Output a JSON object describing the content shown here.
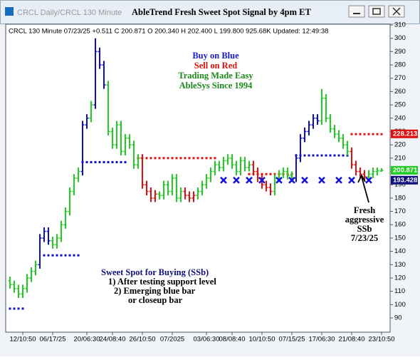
{
  "window": {
    "subtitle": "CRCL  Daily/CRCL 130 Minute",
    "title": "AbleTrend Fresh Sweet Spot Signal by 4pm ET"
  },
  "chart_data": {
    "type": "ohlc",
    "header": "CRCL 130 Minute 07/23/25 +0.511 C 200.871 O 200.340 H 202.400 L 199.800 925.68K Updated: 12:49:38",
    "open": [
      118,
      115,
      112,
      108,
      112,
      120,
      125,
      130,
      150,
      155,
      148,
      145,
      150,
      160,
      170,
      185,
      195,
      200,
      235,
      240,
      250,
      290,
      280,
      265,
      230,
      220,
      235,
      215,
      225,
      220,
      205,
      210,
      190,
      185,
      180,
      183,
      182,
      190,
      185,
      195,
      180,
      185,
      182,
      180,
      182,
      185,
      190,
      195,
      200,
      205,
      203,
      208,
      210,
      205,
      200,
      208,
      203,
      205,
      200,
      195,
      190,
      188,
      185,
      195,
      198,
      200,
      197,
      195,
      210,
      225,
      230,
      235,
      240,
      238,
      255,
      240,
      232,
      228,
      225,
      220,
      215,
      205,
      200,
      198,
      196,
      198,
      200,
      200.34
    ],
    "high": [
      121,
      118,
      115,
      115,
      123,
      128,
      133,
      153,
      158,
      158,
      151,
      153,
      163,
      173,
      188,
      198,
      203,
      238,
      243,
      253,
      300,
      293,
      283,
      268,
      233,
      238,
      238,
      228,
      228,
      223,
      213,
      213,
      193,
      188,
      186,
      185,
      193,
      193,
      198,
      198,
      188,
      188,
      185,
      185,
      188,
      193,
      198,
      203,
      208,
      208,
      211,
      213,
      213,
      208,
      211,
      211,
      208,
      208,
      203,
      198,
      193,
      191,
      198,
      201,
      203,
      203,
      200,
      213,
      228,
      233,
      238,
      243,
      243,
      262,
      258,
      243,
      235,
      231,
      228,
      223,
      218,
      208,
      203,
      201,
      201,
      203,
      203,
      202.4
    ],
    "low": [
      112,
      109,
      105,
      105,
      109,
      117,
      122,
      127,
      147,
      145,
      142,
      142,
      147,
      157,
      167,
      182,
      192,
      197,
      232,
      237,
      247,
      277,
      262,
      227,
      217,
      217,
      212,
      212,
      217,
      202,
      202,
      187,
      182,
      177,
      177,
      179,
      179,
      182,
      182,
      177,
      177,
      179,
      177,
      177,
      179,
      182,
      187,
      192,
      197,
      200,
      200,
      205,
      202,
      197,
      197,
      200,
      200,
      197,
      192,
      187,
      185,
      182,
      182,
      192,
      195,
      194,
      192,
      192,
      207,
      222,
      227,
      232,
      235,
      235,
      237,
      229,
      225,
      222,
      217,
      212,
      202,
      197,
      195,
      193,
      193,
      195,
      197,
      199.8
    ],
    "close": [
      115,
      112,
      108,
      112,
      120,
      125,
      130,
      150,
      155,
      148,
      145,
      150,
      160,
      170,
      185,
      195,
      200,
      235,
      240,
      250,
      290,
      280,
      265,
      230,
      220,
      235,
      215,
      225,
      220,
      205,
      210,
      190,
      185,
      180,
      183,
      182,
      190,
      185,
      195,
      180,
      185,
      182,
      180,
      182,
      185,
      190,
      195,
      200,
      205,
      203,
      208,
      210,
      205,
      200,
      208,
      203,
      205,
      200,
      195,
      190,
      188,
      185,
      195,
      198,
      200,
      197,
      195,
      210,
      225,
      230,
      235,
      240,
      238,
      255,
      240,
      232,
      228,
      225,
      220,
      215,
      205,
      200,
      198,
      196,
      198,
      200,
      200.5,
      200.871
    ],
    "colors": [
      "#22cc22",
      "#22cc22",
      "#22cc22",
      "#22cc22",
      "#22cc22",
      "#22cc22",
      "#22cc22",
      "#1010c0",
      "#1010c0",
      "#1010c0",
      "#22cc22",
      "#22cc22",
      "#22cc22",
      "#22cc22",
      "#22cc22",
      "#22cc22",
      "#22cc22",
      "#1010c0",
      "#1010c0",
      "#22cc22",
      "#1010c0",
      "#1010c0",
      "#1010c0",
      "#22cc22",
      "#22cc22",
      "#22cc22",
      "#22cc22",
      "#22cc22",
      "#22cc22",
      "#22cc22",
      "#22cc22",
      "#e01010",
      "#e01010",
      "#e01010",
      "#e01010",
      "#22cc22",
      "#22cc22",
      "#22cc22",
      "#22cc22",
      "#22cc22",
      "#22cc22",
      "#e01010",
      "#e01010",
      "#e01010",
      "#22cc22",
      "#22cc22",
      "#22cc22",
      "#22cc22",
      "#22cc22",
      "#22cc22",
      "#22cc22",
      "#22cc22",
      "#22cc22",
      "#22cc22",
      "#22cc22",
      "#22cc22",
      "#22cc22",
      "#e01010",
      "#e01010",
      "#e01010",
      "#e01010",
      "#e01010",
      "#22cc22",
      "#22cc22",
      "#22cc22",
      "#22cc22",
      "#22cc22",
      "#1010c0",
      "#1010c0",
      "#1010c0",
      "#1010c0",
      "#1010c0",
      "#1010c0",
      "#22cc22",
      "#22cc22",
      "#22cc22",
      "#22cc22",
      "#22cc22",
      "#22cc22",
      "#22cc22",
      "#e01010",
      "#e01010",
      "#e01010",
      "#e01010",
      "#22cc22",
      "#22cc22",
      "#22cc22",
      "#22cc22"
    ],
    "stops": [
      {
        "start": 0,
        "end": 3,
        "value": 97,
        "color": "#1010c0"
      },
      {
        "start": 8,
        "end": 16,
        "value": 137,
        "color": "#1010c0"
      },
      {
        "start": 17,
        "end": 27,
        "value": 207,
        "color": "#1010c0"
      },
      {
        "start": 30,
        "end": 48,
        "value": 210,
        "color": "#e01010"
      },
      {
        "start": 56,
        "end": 66,
        "value": 198,
        "color": "#e01010"
      },
      {
        "start": 67,
        "end": 79,
        "value": 212,
        "color": "#1010c0"
      },
      {
        "start": 80,
        "end": 87,
        "value": 228,
        "color": "#e01010"
      }
    ],
    "x_marks": {
      "index": [
        50,
        53,
        56,
        59,
        63,
        66,
        69,
        73,
        77,
        80,
        84
      ],
      "value": 193.428,
      "color": "#1010e0"
    },
    "price_labels": [
      {
        "value": 228.213,
        "color": "#e01010"
      },
      {
        "value": 200.871,
        "color": "#22cc22"
      },
      {
        "value": 193.428,
        "color": "#101080"
      }
    ],
    "ylim": [
      90,
      310
    ],
    "yticks": [
      90,
      100,
      110,
      120,
      130,
      140,
      150,
      160,
      170,
      180,
      190,
      200,
      210,
      220,
      230,
      240,
      250,
      260,
      270,
      280,
      290,
      300,
      310
    ],
    "xlim": [
      -1,
      89
    ],
    "xticks": [
      {
        "value": 3,
        "label": "12/10:50"
      },
      {
        "value": 10,
        "label": "06/17/25"
      },
      {
        "value": 18,
        "label": "20/06:30"
      },
      {
        "value": 24,
        "label": "24/08:40"
      },
      {
        "value": 31,
        "label": "26/10:50"
      },
      {
        "value": 38,
        "label": "07/2025"
      },
      {
        "value": 46,
        "label": "03/06:30"
      },
      {
        "value": 52,
        "label": "08/08:40"
      },
      {
        "value": 59,
        "label": "10/10:50"
      },
      {
        "value": 66,
        "label": "07/15/25"
      },
      {
        "value": 73,
        "label": "17/06:30"
      },
      {
        "value": 80,
        "label": "21/08:40"
      },
      {
        "value": 87,
        "label": "23/10:50"
      }
    ],
    "legend": [
      {
        "text": "Buy on Blue",
        "color": "#1a1ad0"
      },
      {
        "text": "Sell on Red",
        "color": "#e01010"
      },
      {
        "text": "Trading Made Easy",
        "color": "#1a8a1a"
      },
      {
        "text": "AbleSys Since 1994",
        "color": "#1a8a1a"
      }
    ],
    "note_title": "Sweet Spot for Buying (SSb)",
    "note_lines": [
      "1) After testing support level",
      "2) Emerging blue bar",
      "or closeup bar"
    ],
    "callout": [
      "Fresh",
      "aggressive",
      "SSb",
      "7/23/25"
    ]
  }
}
